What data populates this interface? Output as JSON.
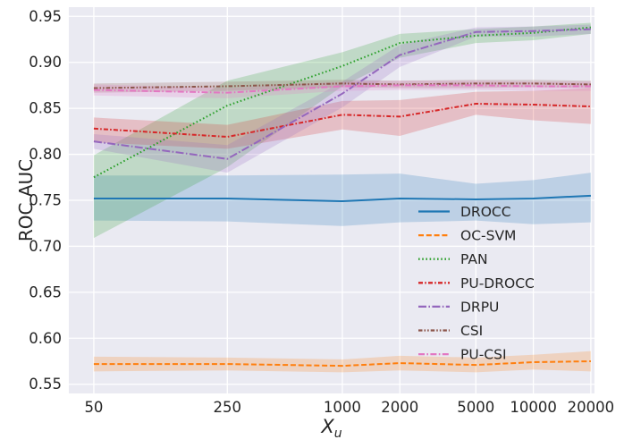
{
  "figure": {
    "ylabel": "ROC AUC",
    "xlabel_base": "X",
    "xlabel_sub": "u"
  },
  "chart_data": {
    "type": "line",
    "title": "",
    "xlabel": "X_u",
    "ylabel": "ROC AUC",
    "xscale": "log",
    "grid": true,
    "background_color": "#eaeaf2",
    "gridline_color": "#ffffff",
    "band_opacity": 0.22,
    "legend_position": "lower-right-inside",
    "x": [
      50,
      250,
      1000,
      2000,
      5000,
      10000,
      20000
    ],
    "xtick_labels": [
      "50",
      "250",
      "1000",
      "2000",
      "5000",
      "10000",
      "20000"
    ],
    "yticks": [
      0.55,
      0.6,
      0.65,
      0.7,
      0.75,
      0.8,
      0.85,
      0.9,
      0.95
    ],
    "ytick_labels": [
      "0.55",
      "0.60",
      "0.65",
      "0.70",
      "0.75",
      "0.80",
      "0.85",
      "0.90",
      "0.95"
    ],
    "ylim": [
      0.54,
      0.96
    ],
    "xlim": [
      37,
      20900
    ],
    "series": [
      {
        "name": "DROCC",
        "color": "#1f77b4",
        "linestyle": "solid",
        "dash": "",
        "values": [
          0.752,
          0.752,
          0.749,
          0.752,
          0.751,
          0.752,
          0.755
        ],
        "lower": [
          0.728,
          0.727,
          0.722,
          0.726,
          0.728,
          0.724,
          0.726
        ],
        "upper": [
          0.777,
          0.777,
          0.778,
          0.779,
          0.768,
          0.772,
          0.78
        ]
      },
      {
        "name": "OC-SVM",
        "color": "#ff7f0e",
        "linestyle": "dashed",
        "dash": "6,2.8",
        "values": [
          0.572,
          0.572,
          0.57,
          0.573,
          0.571,
          0.574,
          0.575
        ],
        "lower": [
          0.564,
          0.565,
          0.563,
          0.565,
          0.563,
          0.566,
          0.564
        ],
        "upper": [
          0.58,
          0.579,
          0.577,
          0.581,
          0.579,
          0.582,
          0.586
        ]
      },
      {
        "name": "PAN",
        "color": "#2ca02c",
        "linestyle": "dotted",
        "dash": "1.6,2.6",
        "values": [
          0.775,
          0.853,
          0.896,
          0.921,
          0.929,
          0.932,
          0.938
        ],
        "lower": [
          0.709,
          0.786,
          0.874,
          0.905,
          0.921,
          0.924,
          0.931
        ],
        "upper": [
          0.799,
          0.88,
          0.911,
          0.931,
          0.936,
          0.939,
          0.943
        ]
      },
      {
        "name": "PU-DROCC",
        "color": "#d62728",
        "linestyle": "dashdot",
        "dash": "5,2.2,1.6,2.2",
        "values": [
          0.828,
          0.819,
          0.843,
          0.841,
          0.855,
          0.854,
          0.852
        ],
        "lower": [
          0.813,
          0.806,
          0.827,
          0.82,
          0.843,
          0.837,
          0.833
        ],
        "upper": [
          0.84,
          0.832,
          0.858,
          0.859,
          0.868,
          0.869,
          0.872
        ]
      },
      {
        "name": "DRPU",
        "color": "#9467bd",
        "linestyle": "long-dashdot",
        "dash": "9,2.4,1.6,2.4",
        "values": [
          0.814,
          0.795,
          0.866,
          0.908,
          0.933,
          0.934,
          0.936
        ],
        "lower": [
          0.806,
          0.78,
          0.851,
          0.895,
          0.928,
          0.928,
          0.931
        ],
        "upper": [
          0.822,
          0.81,
          0.879,
          0.919,
          0.938,
          0.939,
          0.941
        ]
      },
      {
        "name": "CSI",
        "color": "#8c564b",
        "linestyle": "dash-dot-dot",
        "dash": "4.5,2,1.6,2,1.6,2",
        "values": [
          0.872,
          0.874,
          0.877,
          0.876,
          0.877,
          0.877,
          0.876
        ],
        "lower": [
          0.867,
          0.869,
          0.873,
          0.872,
          0.872,
          0.873,
          0.872
        ],
        "upper": [
          0.877,
          0.879,
          0.881,
          0.88,
          0.881,
          0.881,
          0.88
        ]
      },
      {
        "name": "PU-CSI",
        "color": "#e377c2",
        "linestyle": "dashdot",
        "dash": "7,2.4,1.6,2.4",
        "values": [
          0.87,
          0.867,
          0.874,
          0.875,
          0.875,
          0.874,
          0.874
        ],
        "lower": [
          0.864,
          0.861,
          0.869,
          0.87,
          0.87,
          0.869,
          0.869
        ],
        "upper": [
          0.876,
          0.872,
          0.879,
          0.88,
          0.88,
          0.879,
          0.879
        ]
      }
    ]
  }
}
